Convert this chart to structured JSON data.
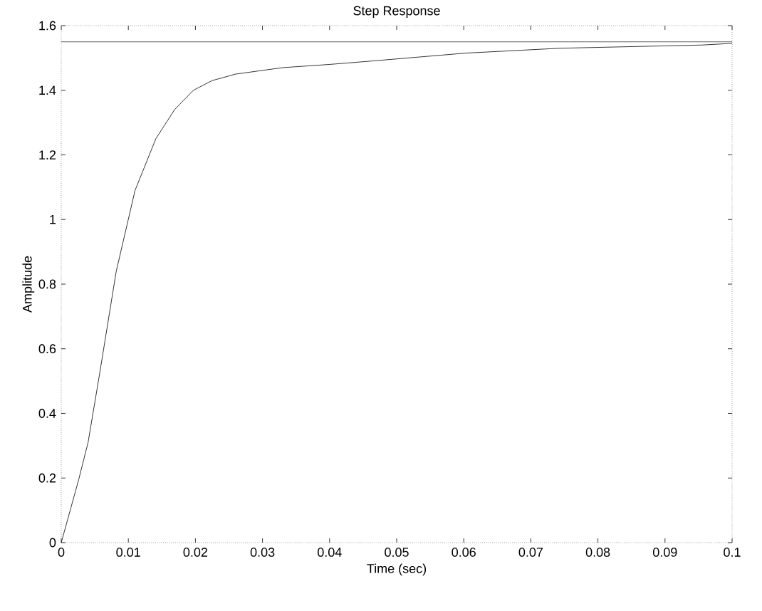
{
  "chart_data": {
    "type": "line",
    "title": "Step Response",
    "xlabel": "Time (sec)",
    "ylabel": "Amplitude",
    "x": [
      0,
      0.0026,
      0.004,
      0.0057,
      0.0082,
      0.011,
      0.0141,
      0.0169,
      0.0197,
      0.0225,
      0.026,
      0.033,
      0.04,
      0.046,
      0.0603,
      0.0743,
      0.0955,
      0.1
    ],
    "series": [
      {
        "color": "#000000",
        "values": [
          0,
          0.195,
          0.31,
          0.52,
          0.84,
          1.09,
          1.25,
          1.34,
          1.4,
          1.43,
          1.45,
          1.47,
          1.48,
          1.49,
          1.515,
          1.53,
          1.54,
          1.545
        ]
      }
    ],
    "xlim": [
      0,
      0.1
    ],
    "ylim": [
      0,
      1.6
    ],
    "xticks": [
      0,
      0.01,
      0.02,
      0.03,
      0.04,
      0.05,
      0.06,
      0.07,
      0.08,
      0.09,
      0.1
    ],
    "yticks": [
      0,
      0.2,
      0.4,
      0.6,
      0.8,
      1,
      1.2,
      1.4,
      1.6
    ],
    "ref_lines": [
      {
        "axis": "y",
        "value": 1.55,
        "color": "#000000"
      }
    ],
    "marker": "none",
    "line_style": "solid",
    "grid": false
  }
}
